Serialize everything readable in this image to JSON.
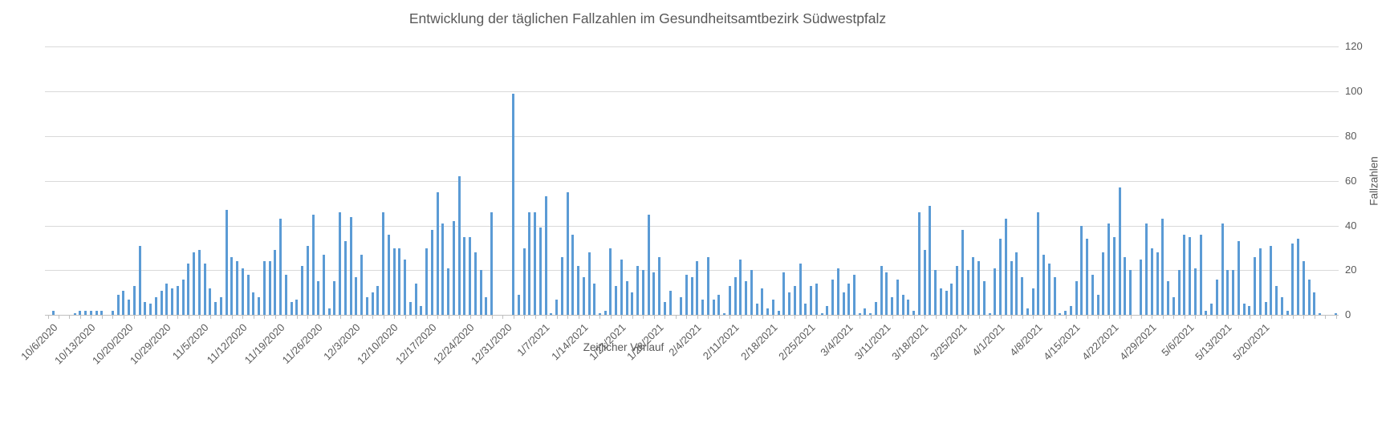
{
  "title": "Entwicklung der täglichen Fallzahlen im Gesundheitsamtbezirk Südwestpfalz",
  "x_axis_title": "Zeitlicher Verlauf",
  "y_axis_title": "Fallzahlen",
  "colors": {
    "bar": "#5b9bd5",
    "gridline": "#d9d9d9",
    "axis_line": "#bfbfbf",
    "text": "#595959",
    "background": "#ffffff"
  },
  "chart_data": {
    "type": "bar",
    "title": "Entwicklung der täglichen Fallzahlen im Gesundheitsamtbezirk Südwestpfalz",
    "xlabel": "Zeitlicher Verlauf",
    "ylabel": "Fallzahlen",
    "ylim": [
      0,
      120
    ],
    "y_ticks": [
      0,
      20,
      40,
      60,
      80,
      100,
      120
    ],
    "grid": "horizontal",
    "legend": "none",
    "x_tick_labels": [
      "10/6/2020",
      "10/13/2020",
      "10/20/2020",
      "10/29/2020",
      "11/5/2020",
      "11/12/2020",
      "11/19/2020",
      "11/26/2020",
      "12/3/2020",
      "12/10/2020",
      "12/17/2020",
      "12/24/2020",
      "12/31/2020",
      "1/7/2021",
      "1/14/2021",
      "1/21/2021",
      "1/28/2021",
      "2/4/2021",
      "2/11/2021",
      "2/18/2021",
      "2/25/2021",
      "3/4/2021",
      "3/11/2021",
      "3/18/2021",
      "3/25/2021",
      "4/1/2021",
      "4/8/2021",
      "4/15/2021",
      "4/22/2021",
      "4/29/2021",
      "5/6/2021",
      "5/13/2021",
      "5/20/2021"
    ],
    "categories": [
      "10/6/2020",
      "10/7/2020",
      "10/8/2020",
      "10/9/2020",
      "10/10/2020",
      "10/11/2020",
      "10/12/2020",
      "10/13/2020",
      "10/14/2020",
      "10/15/2020",
      "10/16/2020",
      "10/17/2020",
      "10/18/2020",
      "10/19/2020",
      "10/20/2020",
      "10/21/2020",
      "10/22/2020",
      "10/23/2020",
      "10/24/2020",
      "10/27/2020",
      "10/28/2020",
      "10/29/2020",
      "10/30/2020",
      "10/31/2020",
      "11/1/2020",
      "11/2/2020",
      "11/3/2020",
      "11/4/2020",
      "11/5/2020",
      "11/6/2020",
      "11/7/2020",
      "11/8/2020",
      "11/9/2020",
      "11/10/2020",
      "11/11/2020",
      "11/12/2020",
      "11/13/2020",
      "11/14/2020",
      "11/15/2020",
      "11/16/2020",
      "11/17/2020",
      "11/18/2020",
      "11/19/2020",
      "11/20/2020",
      "11/21/2020",
      "11/22/2020",
      "11/23/2020",
      "11/24/2020",
      "11/25/2020",
      "11/26/2020",
      "11/27/2020",
      "11/28/2020",
      "11/29/2020",
      "11/30/2020",
      "12/1/2020",
      "12/2/2020",
      "12/3/2020",
      "12/4/2020",
      "12/5/2020",
      "12/6/2020",
      "12/7/2020",
      "12/8/2020",
      "12/9/2020",
      "12/10/2020",
      "12/11/2020",
      "12/12/2020",
      "12/13/2020",
      "12/14/2020",
      "12/15/2020",
      "12/16/2020",
      "12/17/2020",
      "12/18/2020",
      "12/19/2020",
      "12/20/2020",
      "12/21/2020",
      "12/22/2020",
      "12/23/2020",
      "12/24/2020",
      "12/25/2020",
      "12/26/2020",
      "12/27/2020",
      "12/28/2020",
      "12/29/2020",
      "12/30/2020",
      "12/31/2020",
      "1/1/2021",
      "1/2/2021",
      "1/3/2021",
      "1/4/2021",
      "1/5/2021",
      "1/6/2021",
      "1/7/2021",
      "1/8/2021",
      "1/9/2021",
      "1/10/2021",
      "1/11/2021",
      "1/12/2021",
      "1/13/2021",
      "1/14/2021",
      "1/15/2021",
      "1/16/2021",
      "1/17/2021",
      "1/18/2021",
      "1/19/2021",
      "1/20/2021",
      "1/21/2021",
      "1/22/2021",
      "1/23/2021",
      "1/24/2021",
      "1/25/2021",
      "1/26/2021",
      "1/27/2021",
      "1/28/2021",
      "1/29/2021",
      "1/30/2021",
      "1/31/2021",
      "2/1/2021",
      "2/2/2021",
      "2/3/2021",
      "2/4/2021",
      "2/5/2021",
      "2/6/2021",
      "2/7/2021",
      "2/8/2021",
      "2/9/2021",
      "2/10/2021",
      "2/11/2021",
      "2/12/2021",
      "2/13/2021",
      "2/14/2021",
      "2/15/2021",
      "2/16/2021",
      "2/17/2021",
      "2/18/2021",
      "2/19/2021",
      "2/20/2021",
      "2/21/2021",
      "2/22/2021",
      "2/23/2021",
      "2/24/2021",
      "2/25/2021",
      "2/26/2021",
      "2/27/2021",
      "2/28/2021",
      "3/1/2021",
      "3/2/2021",
      "3/3/2021",
      "3/4/2021",
      "3/5/2021",
      "3/6/2021",
      "3/7/2021",
      "3/8/2021",
      "3/9/2021",
      "3/10/2021",
      "3/11/2021",
      "3/12/2021",
      "3/13/2021",
      "3/14/2021",
      "3/15/2021",
      "3/16/2021",
      "3/17/2021",
      "3/18/2021",
      "3/19/2021",
      "3/20/2021",
      "3/21/2021",
      "3/22/2021",
      "3/23/2021",
      "3/24/2021",
      "3/25/2021",
      "3/26/2021",
      "3/27/2021",
      "3/28/2021",
      "3/29/2021",
      "3/30/2021",
      "3/31/2021",
      "4/1/2021",
      "4/2/2021",
      "4/3/2021",
      "4/4/2021",
      "4/5/2021",
      "4/6/2021",
      "4/7/2021",
      "4/8/2021",
      "4/9/2021",
      "4/10/2021",
      "4/11/2021",
      "4/12/2021",
      "4/13/2021",
      "4/14/2021",
      "4/15/2021",
      "4/16/2021",
      "4/17/2021",
      "4/18/2021",
      "4/19/2021",
      "4/20/2021",
      "4/21/2021",
      "4/22/2021",
      "4/23/2021",
      "4/24/2021",
      "4/25/2021",
      "4/26/2021",
      "4/27/2021",
      "4/28/2021",
      "4/29/2021",
      "4/30/2021",
      "5/1/2021",
      "5/2/2021",
      "5/3/2021",
      "5/4/2021",
      "5/5/2021",
      "5/6/2021",
      "5/7/2021",
      "5/8/2021",
      "5/9/2021",
      "5/10/2021",
      "5/11/2021",
      "5/12/2021",
      "5/13/2021",
      "5/14/2021",
      "5/15/2021",
      "5/16/2021",
      "5/17/2021",
      "5/18/2021",
      "5/19/2021",
      "5/20/2021",
      "5/21/2021",
      "5/22/2021",
      "5/23/2021",
      "5/24/2021",
      "5/25/2021",
      "5/26/2021",
      "5/27/2021",
      "5/28/2021",
      "5/29/2021",
      "5/30/2021",
      "5/31/2021",
      "6/1/2021",
      "6/2/2021",
      "6/3/2021"
    ],
    "values": [
      0,
      2,
      0,
      0,
      0,
      1,
      2,
      2,
      2,
      2,
      2,
      0,
      2,
      9,
      11,
      7,
      13,
      31,
      6,
      5,
      8,
      11,
      14,
      12,
      13,
      16,
      23,
      28,
      29,
      23,
      12,
      6,
      8,
      47,
      26,
      24,
      21,
      18,
      10,
      8,
      24,
      24,
      29,
      43,
      18,
      6,
      7,
      22,
      31,
      45,
      15,
      27,
      3,
      15,
      46,
      33,
      44,
      17,
      27,
      8,
      10,
      13,
      46,
      36,
      30,
      30,
      25,
      6,
      14,
      4,
      30,
      38,
      55,
      41,
      21,
      42,
      62,
      35,
      35,
      28,
      20,
      8,
      46,
      0,
      0,
      0,
      99,
      9,
      30,
      46,
      46,
      39,
      53,
      1,
      7,
      26,
      55,
      36,
      22,
      17,
      28,
      14,
      1,
      2,
      30,
      13,
      25,
      15,
      10,
      22,
      20,
      45,
      19,
      26,
      6,
      11,
      0,
      8,
      18,
      17,
      24,
      7,
      26,
      7,
      9,
      1,
      13,
      17,
      25,
      15,
      20,
      5,
      12,
      3,
      7,
      2,
      19,
      10,
      13,
      23,
      5,
      13,
      14,
      1,
      4,
      16,
      21,
      10,
      14,
      18,
      1,
      3,
      1,
      6,
      22,
      19,
      8,
      16,
      9,
      7,
      2,
      46,
      29,
      49,
      20,
      12,
      11,
      14,
      22,
      38,
      20,
      26,
      24,
      15,
      1,
      21,
      34,
      43,
      24,
      28,
      17,
      3,
      12,
      46,
      27,
      23,
      17,
      1,
      2,
      4,
      15,
      40,
      34,
      18,
      9,
      28,
      41,
      35,
      57,
      26,
      20,
      0,
      25,
      41,
      30,
      28,
      43,
      15,
      8,
      20,
      36,
      35,
      21,
      36,
      2,
      5,
      16,
      41,
      20,
      20,
      33,
      5,
      4,
      26,
      30,
      6,
      31,
      13,
      8,
      2,
      32,
      34,
      24,
      16,
      10,
      1,
      0,
      0,
      1
    ]
  }
}
